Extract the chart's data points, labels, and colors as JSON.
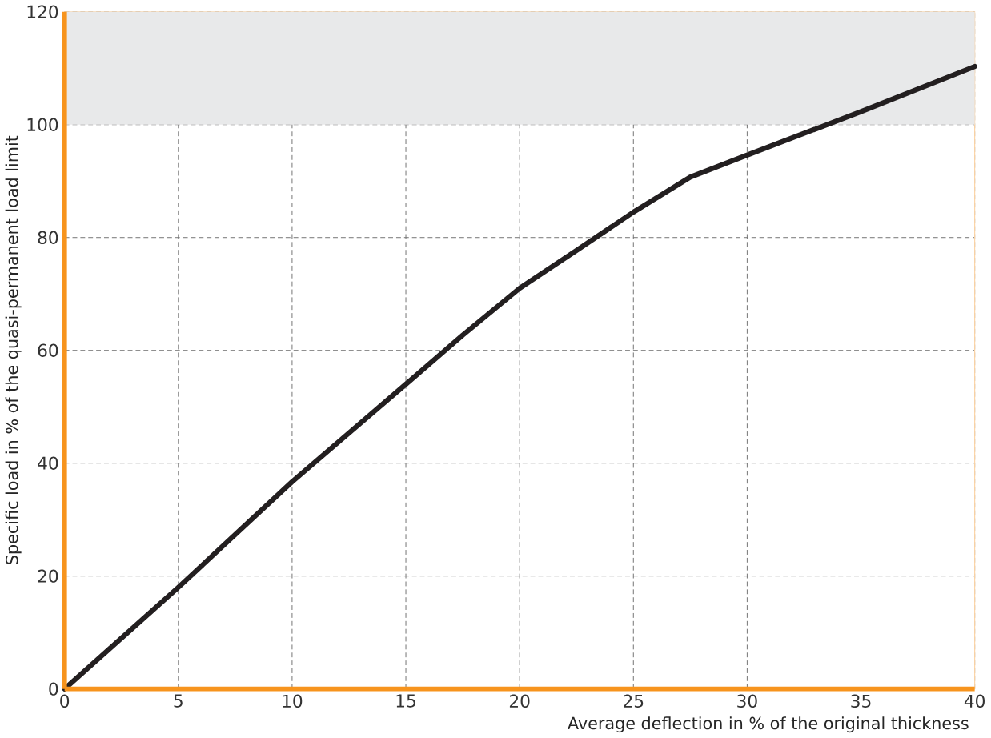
{
  "chart_data": {
    "type": "line",
    "xlabel": "Average deflection in % of the original thickness",
    "ylabel": "Specific load in % of the quasi-permanent load limit",
    "x": [
      0,
      5,
      10,
      15,
      17.5,
      20,
      22.5,
      25,
      27.5,
      30,
      35,
      40
    ],
    "series": [
      {
        "color": "#231f20",
        "values": [
          0,
          18,
          36.7,
          54,
          62.7,
          71,
          77.7,
          84.5,
          90.7,
          94.6,
          102.3,
          110.3
        ]
      }
    ],
    "xlim": [
      0,
      40
    ],
    "ylim": [
      0,
      120
    ],
    "xticks": [
      0,
      5,
      10,
      15,
      20,
      25,
      30,
      35,
      40
    ],
    "yticks": [
      0,
      20,
      40,
      60,
      80,
      100,
      120
    ],
    "bands": [
      {
        "axis": "y",
        "from": 100,
        "to": 120,
        "color": "#e8e9ea"
      }
    ],
    "grid": true,
    "line_style": "solid",
    "marker": "none"
  }
}
